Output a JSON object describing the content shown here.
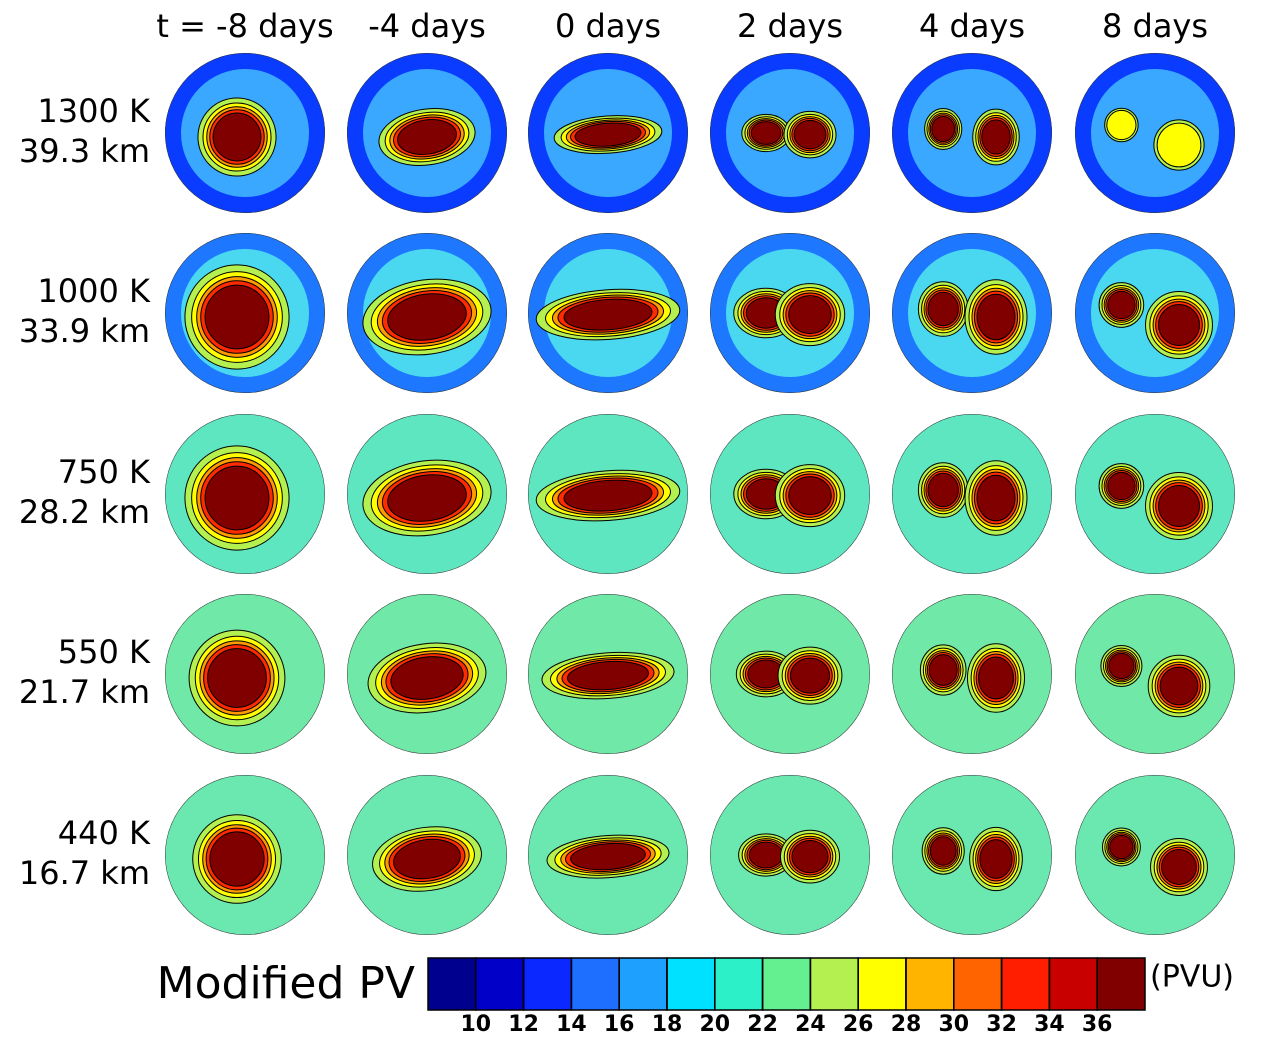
{
  "header": {
    "columns": [
      "t = -8 days",
      "-4 days",
      "0 days",
      "2 days",
      "4 days",
      "8 days"
    ]
  },
  "rows": [
    {
      "level": "1300 K",
      "height": "39.3 km"
    },
    {
      "level": "1000 K",
      "height": "33.9 km"
    },
    {
      "level": "750 K",
      "height": "28.2 km"
    },
    {
      "level": "550 K",
      "height": "21.7 km"
    },
    {
      "level": "440 K",
      "height": "16.7 km"
    }
  ],
  "colorbar": {
    "label": "Modified PV",
    "unit": "(PVU)",
    "ticks": [
      10,
      12,
      14,
      16,
      18,
      20,
      22,
      24,
      26,
      28,
      30,
      32,
      34,
      36
    ],
    "colors": [
      "#00008f",
      "#0000c8",
      "#0a28ff",
      "#1e6eff",
      "#1ea0ff",
      "#00e0ff",
      "#2cf0c8",
      "#64f090",
      "#b4f050",
      "#ffff00",
      "#ffb400",
      "#ff6400",
      "#ff1e00",
      "#c80000",
      "#800000"
    ]
  }
}
